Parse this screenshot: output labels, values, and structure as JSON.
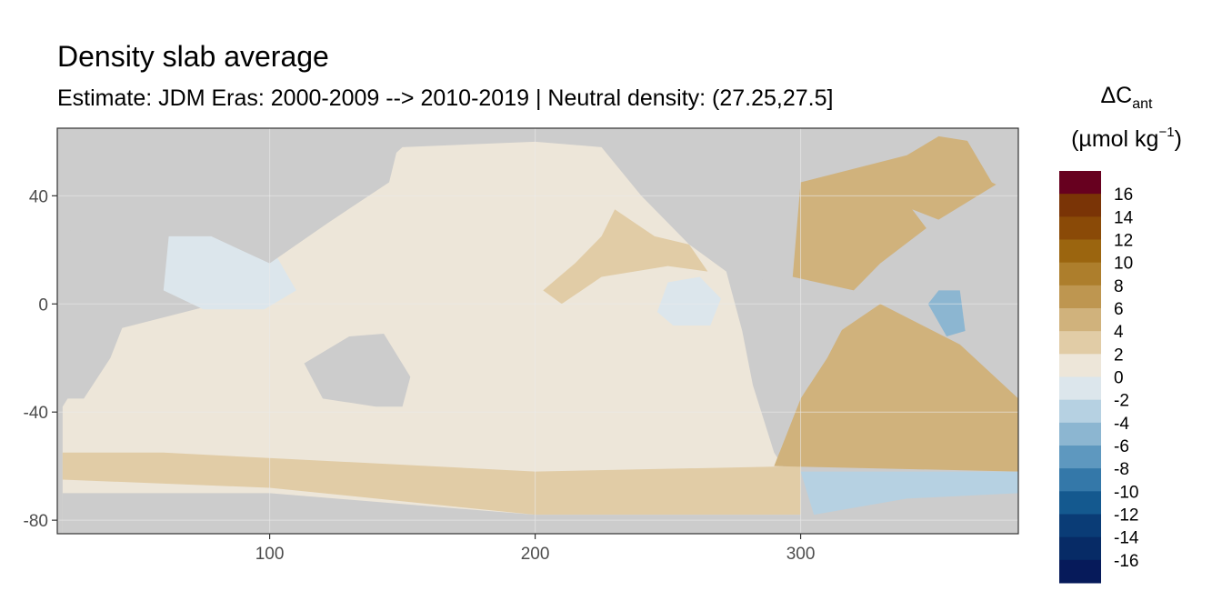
{
  "chart_data": {
    "type": "heatmap",
    "title": "Density slab average",
    "subtitle": "Estimate: JDM Eras: 2000-2009 --> 2010-2019 | Neutral density: (27.25,27.5]",
    "xlabel": "",
    "ylabel": "",
    "xlim": [
      20,
      382
    ],
    "ylim": [
      -85,
      65
    ],
    "x_ticks": [
      "100",
      "200",
      "300"
    ],
    "y_ticks": [
      "40",
      "0",
      "-40",
      "-80"
    ],
    "grid": true,
    "legend_position": "right",
    "legend": {
      "title": "ΔC",
      "title_subscript": "ant",
      "unit_prefix": "(µmol kg",
      "unit_superscript": "−1",
      "unit_suffix": ")",
      "labels": [
        "16",
        "14",
        "12",
        "10",
        "8",
        "6",
        "4",
        "2",
        "0",
        "-2",
        "-4",
        "-6",
        "-8",
        "-10",
        "-12",
        "-14",
        "-16"
      ],
      "colors": [
        "#67001f",
        "#7a3406",
        "#8a4a07",
        "#9b650f",
        "#ad7e2c",
        "#be9650",
        "#d0b27c",
        "#e1cca6",
        "#ede6d9",
        "#dce6ec",
        "#b6d1e2",
        "#8cb6d1",
        "#5e98bf",
        "#3478a9",
        "#14598f",
        "#0a3c76",
        "#072b66",
        "#061a5a"
      ]
    },
    "series": [
      {
        "values": [
          [
            2,
            70,
            30,
            170,
            -35
          ],
          [
            3,
            300,
            -40,
            382,
            -62
          ],
          [
            4,
            300,
            10,
            340,
            55
          ],
          [
            -3,
            330,
            -65,
            382,
            -75
          ],
          [
            -2,
            340,
            0,
            382,
            -20
          ]
        ]
      }
    ]
  }
}
